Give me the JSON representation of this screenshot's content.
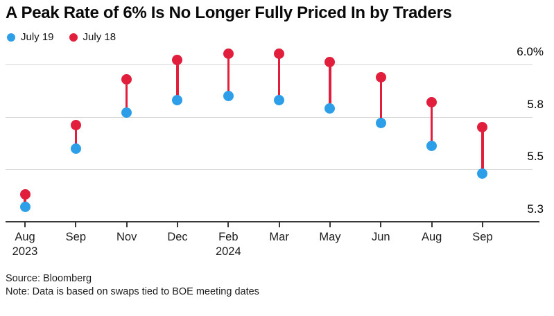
{
  "title": "A Peak Rate of 6% Is No Longer Fully Priced In by Traders",
  "footer": {
    "source_line": "Source: Bloomberg",
    "note_line": "Note: Data is based on swaps tied to BOE meeting dates"
  },
  "colors": {
    "july19_blue": "#2d9fe8",
    "july18_red": "#e11f3d",
    "gridline": "#d9d9d9",
    "axis": "#383838",
    "background": "#ffffff",
    "text": "#000000"
  },
  "chart_data": {
    "type": "scatter",
    "variant": "dumbbell-lollipop",
    "title": "A Peak Rate of 6% Is No Longer Fully Priced In by Traders",
    "categories": [
      "Aug",
      "Sep",
      "Nov",
      "Dec",
      "Feb",
      "Mar",
      "May",
      "Jun",
      "Aug",
      "Sep"
    ],
    "category_years": [
      "2023",
      "",
      "",
      "",
      "2024",
      "",
      "",
      "",
      "",
      ""
    ],
    "series": [
      {
        "name": "July 19",
        "color": "#2d9fe8",
        "values": [
          5.32,
          5.6,
          5.77,
          5.83,
          5.85,
          5.83,
          5.79,
          5.72,
          5.61,
          5.48
        ]
      },
      {
        "name": "July 18",
        "color": "#e11f3d",
        "values": [
          5.38,
          5.71,
          5.93,
          6.02,
          6.05,
          6.05,
          6.01,
          5.94,
          5.82,
          5.7
        ]
      }
    ],
    "connector_color": "#e11f3d",
    "y_axis": {
      "unit": "%",
      "ylim": [
        5.25,
        6.12
      ],
      "ticks": [
        {
          "value": 6.0,
          "label": "6.0%"
        },
        {
          "value": 5.75,
          "label": "5.8"
        },
        {
          "value": 5.5,
          "label": "5.5"
        },
        {
          "value": 5.25,
          "label": "5.3"
        }
      ]
    },
    "grid": "horizontal",
    "legend_position": "top-left",
    "xlabel": "",
    "ylabel": ""
  }
}
